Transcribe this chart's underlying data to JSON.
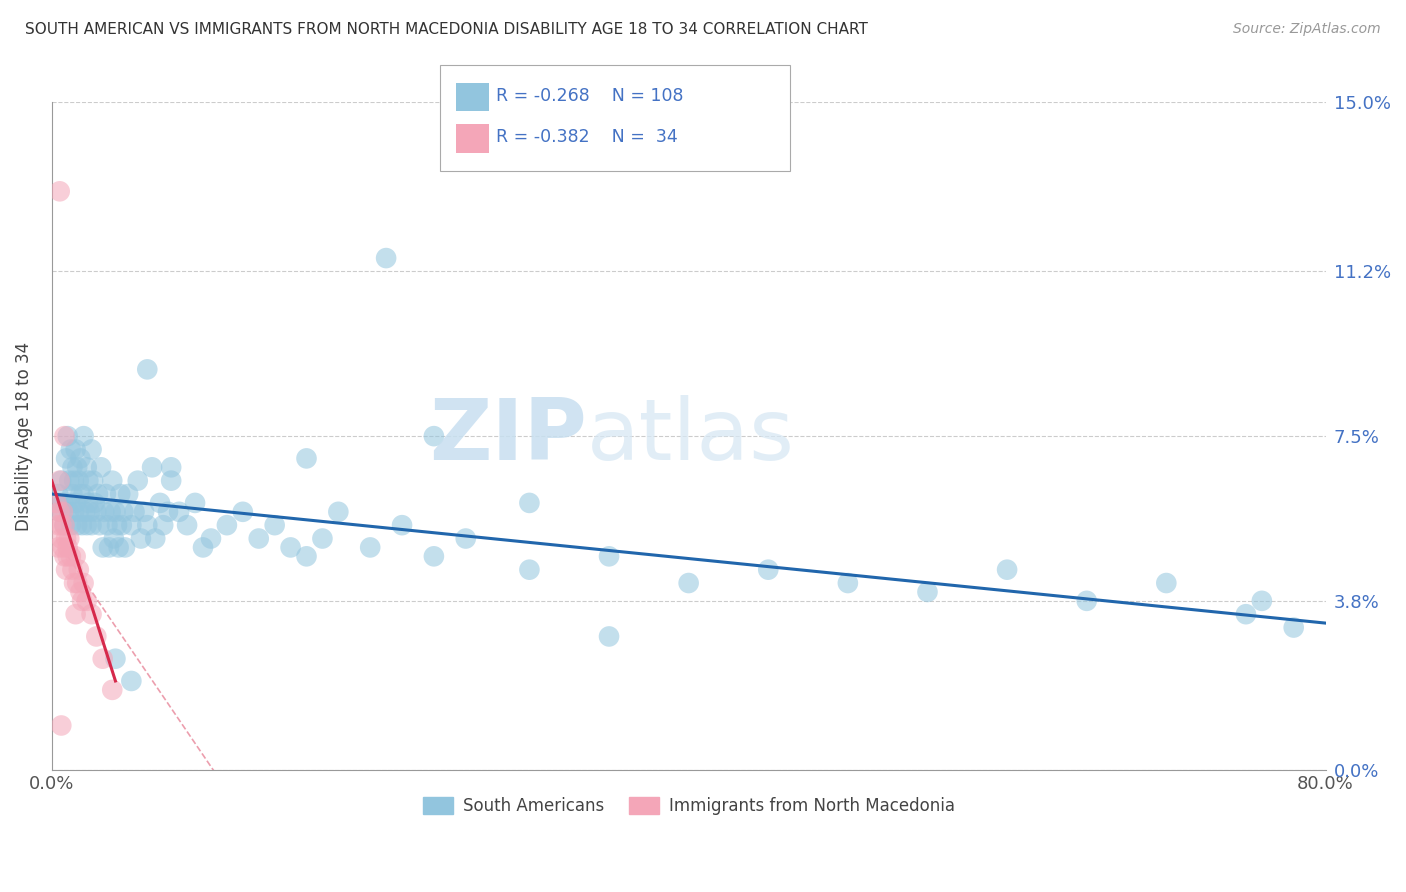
{
  "title": "SOUTH AMERICAN VS IMMIGRANTS FROM NORTH MACEDONIA DISABILITY AGE 18 TO 34 CORRELATION CHART",
  "source": "Source: ZipAtlas.com",
  "ylabel_label": "Disability Age 18 to 34",
  "xlim": [
    0.0,
    0.8
  ],
  "ylim": [
    0.0,
    0.15
  ],
  "ylabel_ticks": [
    0.0,
    3.8,
    7.5,
    11.2,
    15.0
  ],
  "blue_color": "#92c5de",
  "pink_color": "#f4a6b8",
  "blue_line_color": "#2166ac",
  "pink_line_color": "#d6294b",
  "watermark_zip": "ZIP",
  "watermark_atlas": "atlas",
  "blue_regline_x": [
    0.0,
    0.8
  ],
  "blue_regline_y": [
    0.062,
    0.033
  ],
  "pink_regline_x": [
    0.0,
    0.04
  ],
  "pink_regline_y": [
    0.065,
    0.02
  ],
  "pink_dashline_x": [
    0.01,
    0.13
  ],
  "pink_dashline_y": [
    0.048,
    -0.015
  ],
  "blue_scatter_x": [
    0.004,
    0.005,
    0.006,
    0.007,
    0.008,
    0.009,
    0.01,
    0.01,
    0.011,
    0.011,
    0.012,
    0.012,
    0.013,
    0.013,
    0.014,
    0.014,
    0.015,
    0.015,
    0.016,
    0.016,
    0.017,
    0.017,
    0.018,
    0.018,
    0.019,
    0.02,
    0.02,
    0.021,
    0.022,
    0.022,
    0.023,
    0.023,
    0.024,
    0.025,
    0.025,
    0.026,
    0.027,
    0.028,
    0.029,
    0.03,
    0.031,
    0.032,
    0.033,
    0.034,
    0.035,
    0.036,
    0.037,
    0.038,
    0.039,
    0.04,
    0.041,
    0.042,
    0.043,
    0.044,
    0.045,
    0.046,
    0.048,
    0.05,
    0.052,
    0.054,
    0.056,
    0.058,
    0.06,
    0.063,
    0.065,
    0.068,
    0.07,
    0.073,
    0.075,
    0.08,
    0.085,
    0.09,
    0.095,
    0.1,
    0.11,
    0.12,
    0.13,
    0.14,
    0.15,
    0.16,
    0.17,
    0.18,
    0.2,
    0.22,
    0.24,
    0.26,
    0.3,
    0.35,
    0.4,
    0.45,
    0.5,
    0.55,
    0.6,
    0.65,
    0.7,
    0.75,
    0.76,
    0.78,
    0.21,
    0.24,
    0.16,
    0.3,
    0.35,
    0.06,
    0.075,
    0.04,
    0.05
  ],
  "blue_scatter_y": [
    0.062,
    0.058,
    0.065,
    0.06,
    0.055,
    0.07,
    0.075,
    0.06,
    0.065,
    0.058,
    0.072,
    0.055,
    0.068,
    0.062,
    0.058,
    0.065,
    0.072,
    0.06,
    0.068,
    0.055,
    0.065,
    0.058,
    0.062,
    0.07,
    0.055,
    0.075,
    0.062,
    0.058,
    0.068,
    0.055,
    0.065,
    0.06,
    0.058,
    0.072,
    0.055,
    0.065,
    0.06,
    0.058,
    0.062,
    0.055,
    0.068,
    0.05,
    0.058,
    0.062,
    0.055,
    0.05,
    0.058,
    0.065,
    0.052,
    0.058,
    0.055,
    0.05,
    0.062,
    0.055,
    0.058,
    0.05,
    0.062,
    0.055,
    0.058,
    0.065,
    0.052,
    0.058,
    0.055,
    0.068,
    0.052,
    0.06,
    0.055,
    0.058,
    0.065,
    0.058,
    0.055,
    0.06,
    0.05,
    0.052,
    0.055,
    0.058,
    0.052,
    0.055,
    0.05,
    0.048,
    0.052,
    0.058,
    0.05,
    0.055,
    0.048,
    0.052,
    0.045,
    0.048,
    0.042,
    0.045,
    0.042,
    0.04,
    0.045,
    0.038,
    0.042,
    0.035,
    0.038,
    0.032,
    0.115,
    0.075,
    0.07,
    0.06,
    0.03,
    0.09,
    0.068,
    0.025,
    0.02
  ],
  "pink_scatter_x": [
    0.003,
    0.004,
    0.004,
    0.005,
    0.005,
    0.006,
    0.006,
    0.007,
    0.007,
    0.008,
    0.008,
    0.009,
    0.009,
    0.01,
    0.01,
    0.011,
    0.012,
    0.013,
    0.014,
    0.015,
    0.016,
    0.017,
    0.018,
    0.019,
    0.02,
    0.022,
    0.025,
    0.028,
    0.032,
    0.038,
    0.005,
    0.008,
    0.015,
    0.006
  ],
  "pink_scatter_y": [
    0.06,
    0.055,
    0.05,
    0.065,
    0.058,
    0.055,
    0.052,
    0.058,
    0.05,
    0.055,
    0.048,
    0.052,
    0.045,
    0.05,
    0.048,
    0.052,
    0.048,
    0.045,
    0.042,
    0.048,
    0.042,
    0.045,
    0.04,
    0.038,
    0.042,
    0.038,
    0.035,
    0.03,
    0.025,
    0.018,
    0.13,
    0.075,
    0.035,
    0.01
  ]
}
